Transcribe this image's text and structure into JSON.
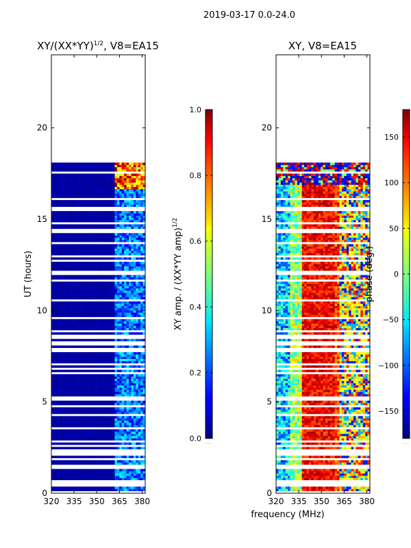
{
  "suptitle": "2019-03-17 0.0-24.0",
  "panels": [
    {
      "id": "amp",
      "title_main": "XY/(XX*YY)",
      "title_sup": "1/2",
      "title_tail": ", V8=EA15",
      "ylabel": "UT (hours)",
      "xlabel": ""
    },
    {
      "id": "phase",
      "title_main": "XY, V8=EA15",
      "title_sup": "",
      "title_tail": "",
      "ylabel": "",
      "xlabel": "frequency (MHz)"
    }
  ],
  "colorbars": [
    {
      "id": "amp-cbar",
      "label_main": "XY amp. / (XX*YY amp)",
      "label_sup": "1/2",
      "ticks": [
        0.0,
        0.2,
        0.4,
        0.6,
        0.8,
        1.0
      ],
      "tick_labels": [
        "0.0",
        "0.2",
        "0.4",
        "0.6",
        "0.8",
        "1.0"
      ],
      "range": [
        0,
        1
      ]
    },
    {
      "id": "phase-cbar",
      "label_main": "phase (deg.)",
      "label_sup": "",
      "ticks": [
        -150,
        -100,
        -50,
        0,
        50,
        100,
        150
      ],
      "tick_labels": [
        "−150",
        "−100",
        "−50",
        "0",
        "50",
        "100",
        "150"
      ],
      "range": [
        -180,
        180
      ]
    }
  ],
  "chart_data": [
    {
      "type": "heatmap",
      "title": "XY/(XX*YY)^1/2, V8=EA15",
      "xlabel": "",
      "ylabel": "UT (hours)",
      "xlim": [
        320,
        382
      ],
      "ylim": [
        0,
        24
      ],
      "xticks": [
        320,
        335,
        350,
        365,
        380
      ],
      "yticks": [
        0,
        5,
        10,
        15,
        20
      ],
      "colormap": "jet",
      "value_range": [
        0,
        1
      ],
      "data_extent_hours": [
        0,
        18.1
      ],
      "description_values": {
        "baseline_amp": 0.03,
        "band_365_382_amp": 0.25,
        "late_hours_17_18_amp_high_freq": 0.9
      }
    },
    {
      "type": "heatmap",
      "title": "XY, V8=EA15",
      "xlabel": "frequency (MHz)",
      "ylabel": "",
      "xlim": [
        320,
        382
      ],
      "ylim": [
        0,
        24
      ],
      "xticks": [
        320,
        335,
        350,
        365,
        380
      ],
      "yticks": [
        0,
        5,
        10,
        15,
        20
      ],
      "colormap": "jet",
      "value_range": [
        -180,
        180
      ],
      "data_extent_hours": [
        0,
        18.1
      ]
    }
  ],
  "footer_marks": [
    "......",
    "......"
  ]
}
